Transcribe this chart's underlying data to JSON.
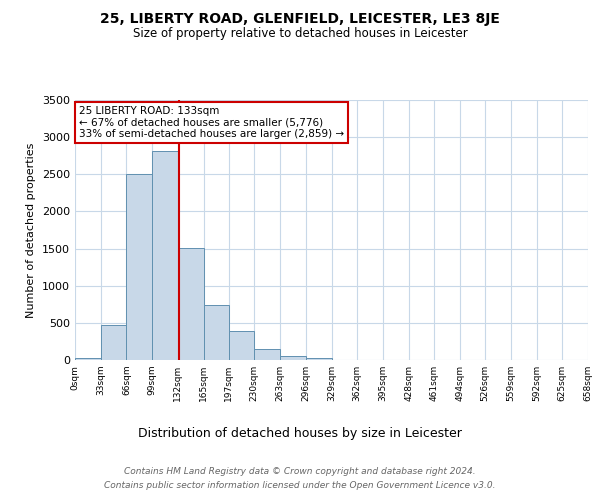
{
  "title": "25, LIBERTY ROAD, GLENFIELD, LEICESTER, LE3 8JE",
  "subtitle": "Size of property relative to detached houses in Leicester",
  "xlabel": "Distribution of detached houses by size in Leicester",
  "ylabel": "Number of detached properties",
  "bin_edges": [
    0,
    33,
    66,
    99,
    132,
    165,
    197,
    230,
    263,
    296,
    329,
    362,
    395,
    428,
    461,
    494,
    526,
    559,
    592,
    625,
    658
  ],
  "bar_heights": [
    30,
    470,
    2500,
    2820,
    1510,
    740,
    390,
    145,
    60,
    30,
    0,
    0,
    0,
    0,
    0,
    0,
    0,
    0,
    0,
    0
  ],
  "bar_color": "#c8d8e8",
  "bar_edge_color": "#6090b0",
  "vline_color": "#cc0000",
  "vline_x": 133,
  "annotation_text": "25 LIBERTY ROAD: 133sqm\n← 67% of detached houses are smaller (5,776)\n33% of semi-detached houses are larger (2,859) →",
  "annotation_box_color": "white",
  "annotation_box_edge_color": "#cc0000",
  "ylim": [
    0,
    3500
  ],
  "yticks": [
    0,
    500,
    1000,
    1500,
    2000,
    2500,
    3000,
    3500
  ],
  "tick_labels": [
    "0sqm",
    "33sqm",
    "66sqm",
    "99sqm",
    "132sqm",
    "165sqm",
    "197sqm",
    "230sqm",
    "263sqm",
    "296sqm",
    "329sqm",
    "362sqm",
    "395sqm",
    "428sqm",
    "461sqm",
    "494sqm",
    "526sqm",
    "559sqm",
    "592sqm",
    "625sqm",
    "658sqm"
  ],
  "footer_text": "Contains HM Land Registry data © Crown copyright and database right 2024.\nContains public sector information licensed under the Open Government Licence v3.0.",
  "background_color": "#ffffff",
  "grid_color": "#c8d8e8",
  "title_fontsize": 10,
  "subtitle_fontsize": 8.5,
  "ylabel_fontsize": 8,
  "xlabel_fontsize": 9,
  "ytick_fontsize": 8,
  "xtick_fontsize": 6.5,
  "footer_fontsize": 6.5,
  "annotation_fontsize": 7.5
}
